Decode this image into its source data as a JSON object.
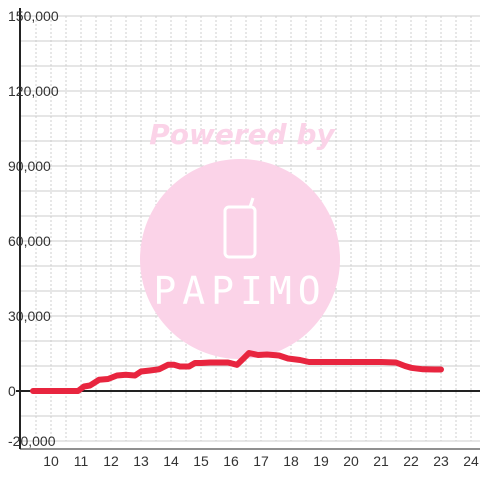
{
  "watermark": {
    "line1": "Powered by",
    "logo": "PAPIMO",
    "color": "#fbd3e8",
    "icon": "phone-icon"
  },
  "chart_data": {
    "type": "line",
    "title": "",
    "xlabel": "",
    "ylabel": "",
    "xlim": [
      9.4,
      24.3
    ],
    "ylim": [
      -20000,
      150000
    ],
    "x_ticks": [
      "10",
      "11",
      "12",
      "13",
      "14",
      "15",
      "16",
      "17",
      "18",
      "19",
      "20",
      "21",
      "22",
      "23",
      "24"
    ],
    "y_ticks": [
      "150,000",
      "120,000",
      "90,000",
      "60,000",
      "30,000",
      "0",
      "-20,000"
    ],
    "grid": true,
    "legend": "none",
    "series": [
      {
        "color": "#e8253f",
        "x": [
          9.4,
          10.9,
          11.1,
          11.3,
          11.6,
          11.9,
          12.2,
          12.5,
          12.8,
          13.0,
          13.3,
          13.6,
          13.9,
          14.1,
          14.3,
          14.6,
          14.8,
          15.0,
          15.3,
          15.6,
          15.9,
          16.2,
          16.4,
          16.6,
          16.9,
          17.2,
          17.6,
          17.9,
          18.3,
          18.6,
          19.0,
          19.5,
          20.0,
          20.5,
          21.0,
          21.5,
          21.8,
          22.0,
          22.4,
          22.8,
          23.0
        ],
        "y": [
          0,
          0,
          1800,
          2200,
          4500,
          4800,
          6200,
          6500,
          6200,
          7800,
          8200,
          8700,
          10500,
          10500,
          9800,
          9800,
          11200,
          11200,
          11400,
          11400,
          11400,
          10500,
          12800,
          15200,
          14400,
          14600,
          14200,
          13000,
          12400,
          11600,
          11600,
          11600,
          11600,
          11600,
          11600,
          11400,
          10000,
          9300,
          8700,
          8600,
          8600
        ]
      }
    ]
  }
}
